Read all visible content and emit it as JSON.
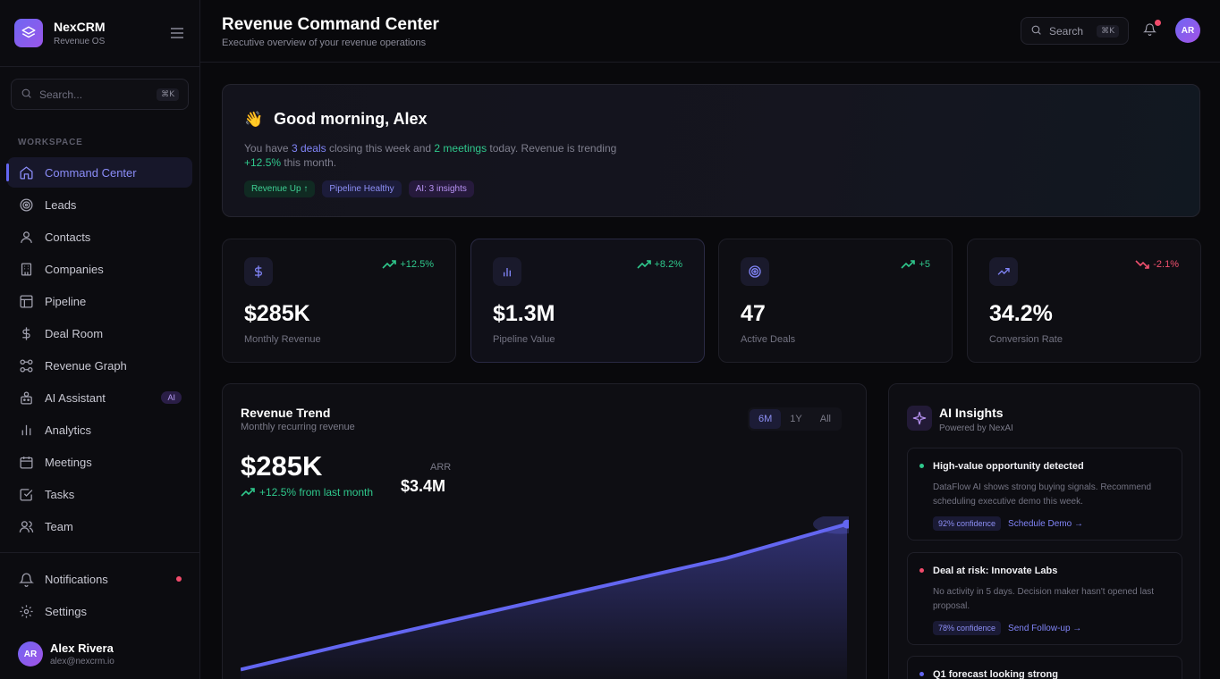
{
  "brand": {
    "name": "NexCRM",
    "sub": "Revenue OS"
  },
  "sidebar": {
    "search_placeholder": "Search...",
    "search_shortcut": "⌘K",
    "section_label": "WORKSPACE",
    "items": [
      {
        "label": "Command Center",
        "icon": "home-icon",
        "active": true
      },
      {
        "label": "Leads",
        "icon": "target-icon"
      },
      {
        "label": "Contacts",
        "icon": "user-icon"
      },
      {
        "label": "Companies",
        "icon": "building-icon"
      },
      {
        "label": "Pipeline",
        "icon": "layout-icon"
      },
      {
        "label": "Deal Room",
        "icon": "dollar-icon"
      },
      {
        "label": "Revenue Graph",
        "icon": "graph-icon"
      },
      {
        "label": "AI Assistant",
        "icon": "bot-icon",
        "badge": "AI"
      },
      {
        "label": "Analytics",
        "icon": "bar-chart-icon"
      },
      {
        "label": "Meetings",
        "icon": "calendar-icon"
      },
      {
        "label": "Tasks",
        "icon": "check-square-icon"
      },
      {
        "label": "Team",
        "icon": "users-icon"
      }
    ],
    "bottom": [
      {
        "label": "Notifications",
        "icon": "bell-icon"
      },
      {
        "label": "Settings",
        "icon": "gear-icon"
      }
    ],
    "user": {
      "initials": "AR",
      "name": "Alex Rivera",
      "email": "alex@nexcrm.io"
    }
  },
  "header": {
    "title": "Revenue Command Center",
    "subtitle": "Executive overview of your revenue operations",
    "search_label": "Search",
    "search_shortcut": "⌘K",
    "avatar_initials": "AR"
  },
  "greeting": {
    "emoji": "👋",
    "title": "Good morning, Alex",
    "t1": "You have ",
    "deals": "3 deals",
    "t2": " closing this week and ",
    "meetings": "2 meetings",
    "t3": " today. Revenue is trending ",
    "trend": "+12.5%",
    "t4": " this month.",
    "tags": [
      "Revenue Up ↑",
      "Pipeline Healthy",
      "AI: 3 insights"
    ]
  },
  "stats": [
    {
      "icon": "dollar-icon",
      "change": "+12.5%",
      "direction": "up",
      "value": "$285K",
      "label": "Monthly Revenue"
    },
    {
      "icon": "bar-chart-icon",
      "change": "+8.2%",
      "direction": "up",
      "value": "$1.3M",
      "label": "Pipeline Value"
    },
    {
      "icon": "target-icon",
      "change": "+5",
      "direction": "up",
      "value": "47",
      "label": "Active Deals"
    },
    {
      "icon": "trending-up-icon",
      "change": "-2.1%",
      "direction": "down",
      "value": "34.2%",
      "label": "Conversion Rate"
    }
  ],
  "trend": {
    "title": "Revenue Trend",
    "subtitle": "Monthly recurring revenue",
    "ranges": [
      "6M",
      "1Y",
      "All"
    ],
    "active_range": "6M",
    "value": "$285K",
    "change": "+12.5% from last month",
    "arr_label": "ARR",
    "arr_value": "$3.4M"
  },
  "chart_data": {
    "type": "area",
    "series": [
      {
        "values": [
          0.11,
          0.37,
          0.62,
          0.87,
          1.12,
          1.43
        ]
      }
    ],
    "line_color": "#6366f1"
  },
  "ai": {
    "title": "AI Insights",
    "subtitle": "Powered by NexAI",
    "insights": [
      {
        "title": "High-value opportunity detected",
        "text": "DataFlow AI shows strong buying signals. Recommend scheduling executive demo this week.",
        "confidence": "92% confidence",
        "action": "Schedule Demo →",
        "color": "#2fc88c"
      },
      {
        "title": "Deal at risk: Innovate Labs",
        "text": "No activity in 5 days. Decision maker hasn't opened last proposal.",
        "confidence": "78% confidence",
        "action": "Send Follow-up →",
        "color": "#f14b6b"
      },
      {
        "title": "Q1 forecast looking strong",
        "color": "#6366f1"
      }
    ]
  }
}
